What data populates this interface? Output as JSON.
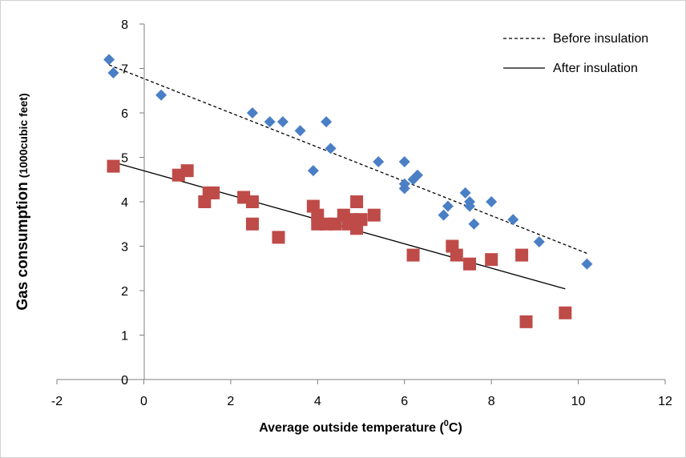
{
  "chart_data": {
    "type": "scatter",
    "title": "",
    "xlabel": "Average outside temperature (",
    "xlabel_sup": "0",
    "xlabel_unit": "C)",
    "ylabel": "Gas consumption",
    "ylabel_small": "(1000cubic feet)",
    "xlim": [
      -2,
      12
    ],
    "ylim": [
      0,
      8
    ],
    "xticks": [
      "-2",
      "0",
      "2",
      "4",
      "6",
      "8",
      "10",
      "12"
    ],
    "yticks": [
      "0",
      "1",
      "2",
      "3",
      "4",
      "5",
      "6",
      "7",
      "8"
    ],
    "grid": false,
    "legend_position": "top-right",
    "legend": [
      {
        "label": "Before insulation",
        "style": "dashed"
      },
      {
        "label": "After insulation",
        "style": "solid"
      }
    ],
    "series": [
      {
        "marker": "diamond",
        "color": "#4a7fc6",
        "points": [
          [
            -0.8,
            7.2
          ],
          [
            -0.7,
            6.9
          ],
          [
            0.4,
            6.4
          ],
          [
            2.5,
            6.0
          ],
          [
            2.9,
            5.8
          ],
          [
            3.2,
            5.8
          ],
          [
            3.6,
            5.6
          ],
          [
            3.9,
            4.7
          ],
          [
            4.2,
            5.8
          ],
          [
            4.3,
            5.2
          ],
          [
            5.4,
            4.9
          ],
          [
            6.0,
            4.9
          ],
          [
            6.0,
            4.4
          ],
          [
            6.0,
            4.3
          ],
          [
            6.2,
            4.5
          ],
          [
            6.3,
            4.6
          ],
          [
            6.9,
            3.7
          ],
          [
            7.0,
            3.9
          ],
          [
            7.4,
            4.2
          ],
          [
            7.5,
            3.9
          ],
          [
            7.5,
            4.0
          ],
          [
            7.6,
            3.5
          ],
          [
            8.0,
            4.0
          ],
          [
            8.5,
            3.6
          ],
          [
            9.1,
            3.1
          ],
          [
            10.2,
            2.6
          ]
        ]
      },
      {
        "marker": "square",
        "color": "#be4b48",
        "points": [
          [
            -0.7,
            4.8
          ],
          [
            0.8,
            4.6
          ],
          [
            1.0,
            4.7
          ],
          [
            1.4,
            4.0
          ],
          [
            1.5,
            4.2
          ],
          [
            1.6,
            4.2
          ],
          [
            2.3,
            4.1
          ],
          [
            2.5,
            4.0
          ],
          [
            2.5,
            3.5
          ],
          [
            3.1,
            3.2
          ],
          [
            3.9,
            3.9
          ],
          [
            4.0,
            3.7
          ],
          [
            4.0,
            3.5
          ],
          [
            4.2,
            3.5
          ],
          [
            4.4,
            3.5
          ],
          [
            4.6,
            3.7
          ],
          [
            4.7,
            3.5
          ],
          [
            4.8,
            3.6
          ],
          [
            4.9,
            4.0
          ],
          [
            4.9,
            3.4
          ],
          [
            5.0,
            3.6
          ],
          [
            5.3,
            3.7
          ],
          [
            6.2,
            2.8
          ],
          [
            7.1,
            3.0
          ],
          [
            7.2,
            2.8
          ],
          [
            7.5,
            2.6
          ],
          [
            8.0,
            2.7
          ],
          [
            8.7,
            2.8
          ],
          [
            8.8,
            1.3
          ],
          [
            9.7,
            1.5
          ]
        ]
      }
    ],
    "trendlines": [
      {
        "style": "dashed",
        "x": [
          -0.8,
          10.2
        ],
        "y": [
          7.08,
          2.84
        ]
      },
      {
        "style": "solid",
        "x": [
          -0.7,
          9.7
        ],
        "y": [
          4.89,
          2.04
        ]
      }
    ]
  }
}
